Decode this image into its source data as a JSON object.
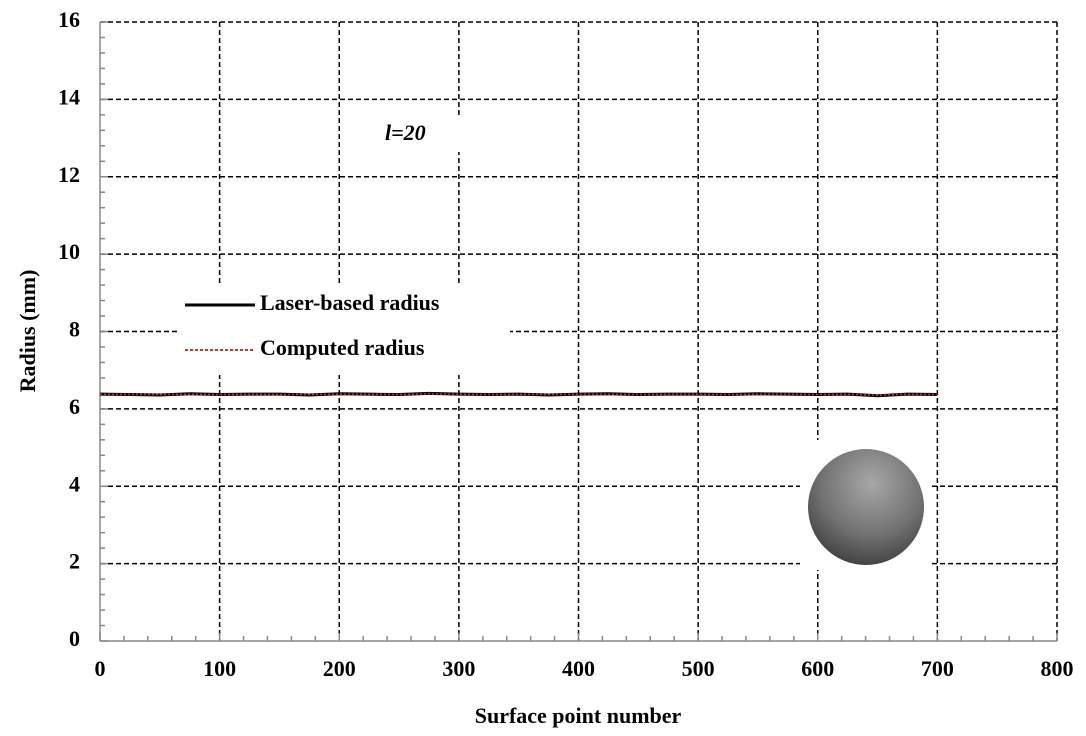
{
  "chart_data": {
    "type": "line",
    "x_label": "Surface point number",
    "y_label": "Radius (mm)",
    "annotation": "l=20",
    "x": [
      0,
      25,
      50,
      75,
      100,
      125,
      150,
      175,
      200,
      225,
      250,
      275,
      300,
      325,
      350,
      375,
      400,
      425,
      450,
      475,
      500,
      525,
      550,
      575,
      600,
      625,
      650,
      675,
      700
    ],
    "series": [
      {
        "name": "Laser-based radius",
        "color": "#000000",
        "style": "solid",
        "values": [
          6.38,
          6.37,
          6.36,
          6.39,
          6.37,
          6.38,
          6.38,
          6.36,
          6.39,
          6.38,
          6.37,
          6.4,
          6.38,
          6.37,
          6.38,
          6.36,
          6.38,
          6.39,
          6.37,
          6.38,
          6.38,
          6.37,
          6.39,
          6.38,
          6.37,
          6.38,
          6.34,
          6.38,
          6.37
        ]
      },
      {
        "name": "Computed radius",
        "color": "#c0392b",
        "style": "dotted",
        "values": [
          6.38,
          6.37,
          6.37,
          6.38,
          6.37,
          6.38,
          6.37,
          6.37,
          6.38,
          6.38,
          6.37,
          6.39,
          6.38,
          6.37,
          6.38,
          6.37,
          6.38,
          6.38,
          6.37,
          6.38,
          6.38,
          6.37,
          6.38,
          6.38,
          6.37,
          6.38,
          6.35,
          6.38,
          6.37
        ]
      }
    ],
    "xlim": [
      0,
      800
    ],
    "xticks": [
      0,
      100,
      200,
      300,
      400,
      500,
      600,
      700,
      800
    ],
    "ylim": [
      0,
      16
    ],
    "yticks": [
      0,
      2,
      4,
      6,
      8,
      10,
      12,
      14,
      16
    ],
    "grid": true,
    "legend": "center left"
  }
}
